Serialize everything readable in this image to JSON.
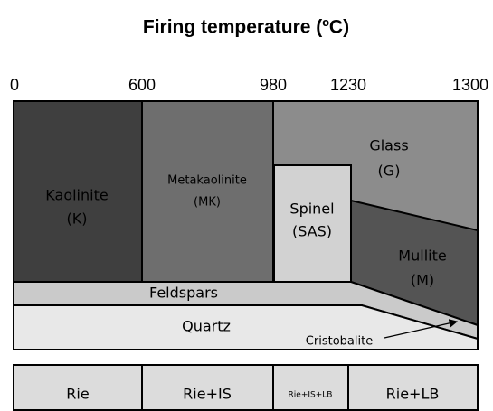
{
  "title": "Firing temperature (ºC)",
  "axis_labels": [
    "0",
    "600",
    "980",
    "1230",
    "1300"
  ],
  "regions": [
    {
      "name": "Kaolinite",
      "abbr": "(K)"
    },
    {
      "name": "Metakaolinite",
      "abbr": "(MK)"
    },
    {
      "name": "Spinel",
      "abbr": "(SAS)"
    },
    {
      "name": "Glass",
      "abbr": "(G)"
    },
    {
      "name": "Mullite",
      "abbr": "(M)"
    },
    {
      "name": "Feldspars"
    },
    {
      "name": "Quartz"
    },
    {
      "name": "Cristobalite"
    }
  ],
  "phases": [
    "Rie",
    "Rie+IS",
    "Rie+IS+LB",
    "Rie+LB"
  ]
}
